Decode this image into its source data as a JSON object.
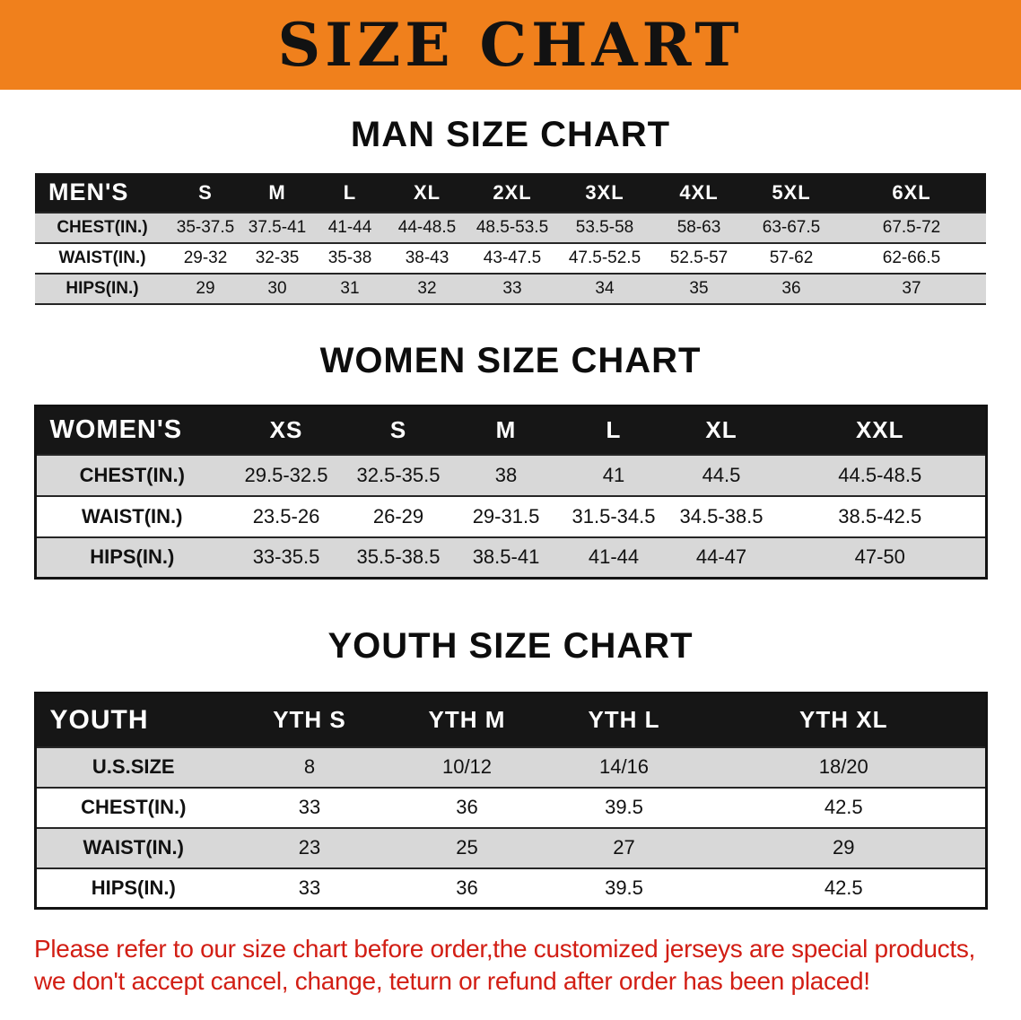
{
  "banner": {
    "title": "SIZE CHART"
  },
  "colors": {
    "banner_orange": "#F0801C",
    "header_black": "#161616",
    "row_gray": "#D8D8D8",
    "note_red": "#D21E14"
  },
  "sections": [
    {
      "heading": "MAN SIZE CHART",
      "table": {
        "corner": "MEN'S",
        "sizes": [
          "S",
          "M",
          "L",
          "XL",
          "2XL",
          "3XL",
          "4XL",
          "5XL",
          "6XL"
        ],
        "rows": [
          {
            "label": "CHEST(IN.)",
            "values": [
              "35-37.5",
              "37.5-41",
              "41-44",
              "44-48.5",
              "48.5-53.5",
              "53.5-58",
              "58-63",
              "63-67.5",
              "67.5-72"
            ]
          },
          {
            "label": "WAIST(IN.)",
            "values": [
              "29-32",
              "32-35",
              "35-38",
              "38-43",
              "43-47.5",
              "47.5-52.5",
              "52.5-57",
              "57-62",
              "62-66.5"
            ]
          },
          {
            "label": "HIPS(IN.)",
            "values": [
              "29",
              "30",
              "31",
              "32",
              "33",
              "34",
              "35",
              "36",
              "37"
            ]
          }
        ]
      }
    },
    {
      "heading": "WOMEN SIZE CHART",
      "table": {
        "corner": "WOMEN'S",
        "sizes": [
          "XS",
          "S",
          "M",
          "L",
          "XL",
          "XXL"
        ],
        "rows": [
          {
            "label": "CHEST(IN.)",
            "values": [
              "29.5-32.5",
              "32.5-35.5",
              "38",
              "41",
              "44.5",
              "44.5-48.5"
            ]
          },
          {
            "label": "WAIST(IN.)",
            "values": [
              "23.5-26",
              "26-29",
              "29-31.5",
              "31.5-34.5",
              "34.5-38.5",
              "38.5-42.5"
            ]
          },
          {
            "label": "HIPS(IN.)",
            "values": [
              "33-35.5",
              "35.5-38.5",
              "38.5-41",
              "41-44",
              "44-47",
              "47-50"
            ]
          }
        ]
      }
    },
    {
      "heading": "YOUTH SIZE CHART",
      "table": {
        "corner": "YOUTH",
        "sizes": [
          "YTH S",
          "YTH M",
          "YTH L",
          "YTH XL"
        ],
        "rows": [
          {
            "label": "U.S.SIZE",
            "values": [
              "8",
              "10/12",
              "14/16",
              "18/20"
            ]
          },
          {
            "label": "CHEST(IN.)",
            "values": [
              "33",
              "36",
              "39.5",
              "42.5"
            ]
          },
          {
            "label": "WAIST(IN.)",
            "values": [
              "23",
              "25",
              "27",
              "29"
            ]
          },
          {
            "label": "HIPS(IN.)",
            "values": [
              "33",
              "36",
              "39.5",
              "42.5"
            ]
          }
        ]
      }
    }
  ],
  "footer": {
    "lines": [
      "Please refer to our size chart before order,the customized jerseys are special products,",
      "we don't accept cancel, change, teturn or refund after order has been placed!"
    ]
  }
}
